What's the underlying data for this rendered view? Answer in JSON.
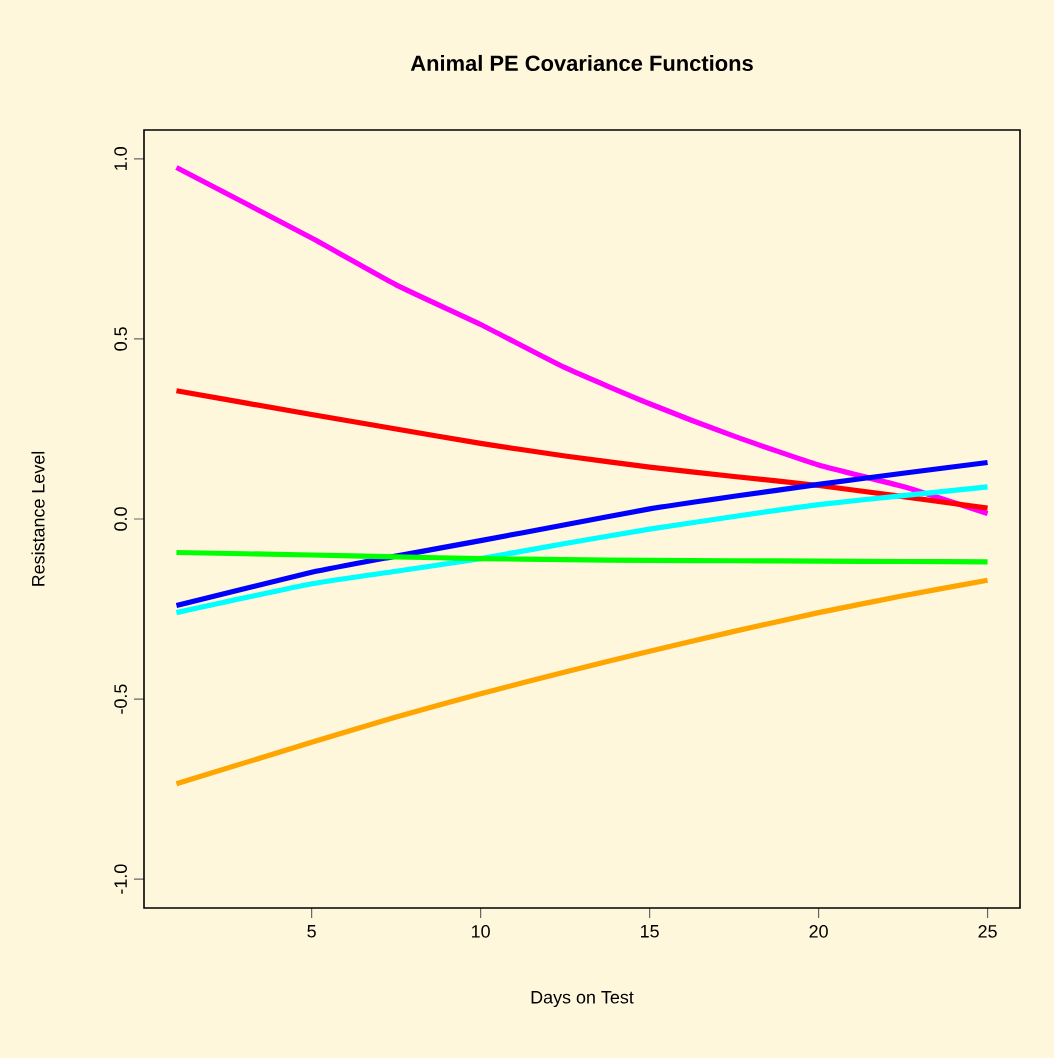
{
  "chart_data": {
    "type": "line",
    "title": "Animal PE Covariance Functions",
    "xlabel": "Days on Test",
    "ylabel": "Resistance Level",
    "xlim": [
      0.04,
      25.96
    ],
    "ylim": [
      -1.08,
      1.08
    ],
    "xticks": [
      5,
      10,
      15,
      20,
      25
    ],
    "yticks": [
      {
        "value": -1,
        "label": "-1.0"
      },
      -0.5,
      {
        "value": 0,
        "label": "0.0"
      },
      0.5,
      {
        "value": 1,
        "label": "1.0"
      }
    ],
    "x": [
      1,
      5,
      7.5,
      10,
      12.5,
      15,
      17.5,
      20,
      22.5,
      25
    ],
    "series": [
      {
        "color": "#ff00ff",
        "values": [
          0.976,
          0.78,
          0.65,
          0.54,
          0.42,
          0.32,
          0.23,
          0.15,
          0.09,
          0.015
        ]
      },
      {
        "color": "#ff0000",
        "values": [
          0.356,
          0.29,
          0.25,
          0.21,
          0.175,
          0.144,
          0.118,
          0.093,
          0.062,
          0.03
        ]
      },
      {
        "color": "#0000ff",
        "values": [
          -0.24,
          -0.148,
          -0.103,
          -0.06,
          -0.016,
          0.028,
          0.063,
          0.096,
          0.127,
          0.157
        ]
      },
      {
        "color": "#00ffff",
        "values": [
          -0.26,
          -0.18,
          -0.145,
          -0.11,
          -0.068,
          -0.028,
          0.007,
          0.04,
          0.065,
          0.089
        ]
      },
      {
        "color": "#00ff00",
        "values": [
          -0.093,
          -0.1,
          -0.105,
          -0.11,
          -0.113,
          -0.115,
          -0.116,
          -0.117,
          -0.118,
          -0.119
        ]
      },
      {
        "color": "#ffa500",
        "values": [
          -0.735,
          -0.62,
          -0.55,
          -0.485,
          -0.425,
          -0.367,
          -0.312,
          -0.26,
          -0.213,
          -0.17
        ]
      }
    ]
  }
}
